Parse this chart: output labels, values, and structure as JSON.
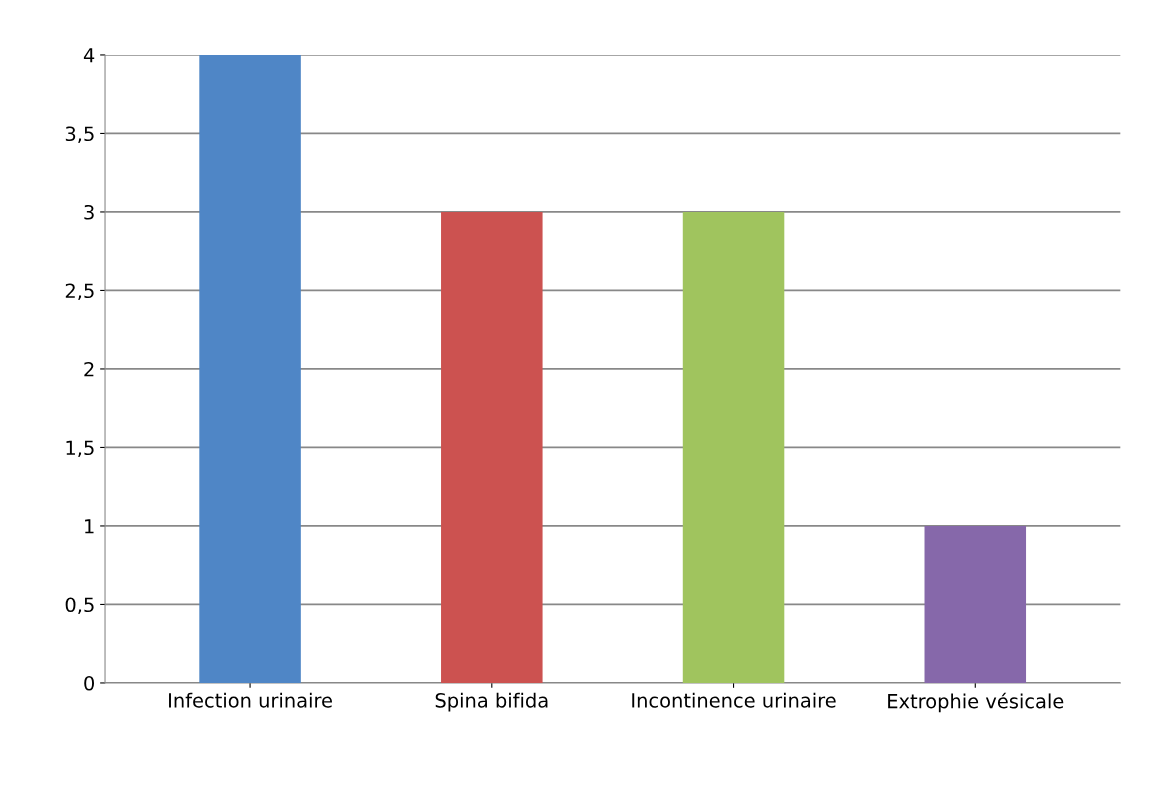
{
  "chart_data": {
    "type": "bar",
    "categories": [
      "Infection urinaire",
      "Spina bifida",
      "Incontinence urinaire",
      "Extrophie vésicale"
    ],
    "values": [
      4,
      3,
      3,
      1
    ],
    "colors": [
      "#4f86c6",
      "#cc5250",
      "#a0c45e",
      "#8668aa"
    ],
    "ylim": [
      0,
      4
    ],
    "yticks": [
      0,
      {
        "value": 0.5,
        "label": "0,5"
      },
      1,
      {
        "value": 1.5,
        "label": "1,5"
      },
      2,
      {
        "value": 2.5,
        "label": "2,5"
      },
      3,
      {
        "value": 3.5,
        "label": "3,5"
      },
      4
    ],
    "grid": "y"
  }
}
